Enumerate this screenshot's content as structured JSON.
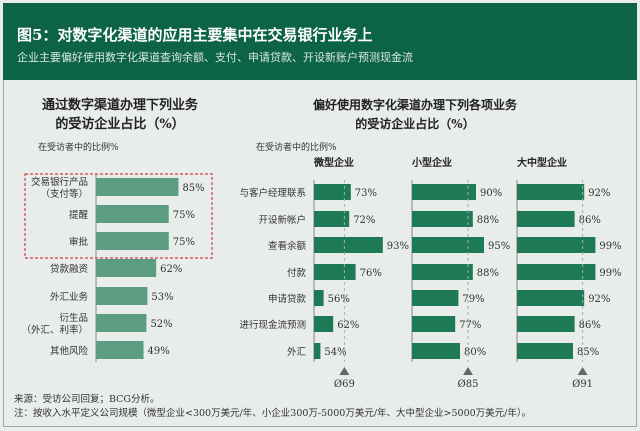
{
  "header": {
    "title": "图5：对数字化渠道的应用主要集中在交易银行业务上",
    "subtitle": "企业主要偏好使用数字化渠道查询余额、支付、申请贷款、开设新账户预测现金流"
  },
  "footer": {
    "source": "来源：受访公司回复；BCG分析。",
    "note": "注：按收入水平定义公司规模（微型企业<300万美元/年、小企业300万-5000万美元/年、大中型企业>5000万美元/年）。"
  },
  "colors": {
    "header": "#0c6444",
    "left_bar": "#5c9c80",
    "right_bar": "#1e7a54",
    "highlight": "#d0404a"
  },
  "chart_data": [
    {
      "type": "bar",
      "orientation": "horizontal",
      "title": "通过数字渠道办理下列业务的受访企业占比（%）",
      "title_lines": [
        "通过数字渠道办理下列业务",
        "的受访企业占比（%）"
      ],
      "axis_note": "在受访者中的比例%",
      "categories": [
        [
          "交易银行产品",
          "（支付等）"
        ],
        [
          "提醒"
        ],
        [
          "审批"
        ],
        [
          "贷款融资"
        ],
        [
          "外汇业务"
        ],
        [
          "衍生品",
          "（外汇、利率）"
        ],
        [
          "其他风险"
        ]
      ],
      "values": [
        85,
        75,
        75,
        62,
        53,
        52,
        49
      ],
      "labels": [
        "85%",
        "75%",
        "75%",
        "62%",
        "53%",
        "52%",
        "49%"
      ],
      "highlighted_categories": [
        0,
        1,
        2
      ],
      "xlim": [
        0,
        100
      ]
    },
    {
      "type": "bar",
      "orientation": "horizontal",
      "title": "偏好使用数字化渠道办理下列各项业务的受访企业占比（%）",
      "title_lines": [
        "偏好使用数字化渠道办理下列各项业务",
        "的受访企业占比（%）"
      ],
      "axis_note": "在受访者中的比例%",
      "categories": [
        "与客户经理联系",
        "开设新帐户",
        "查看余额",
        "付款",
        "申请贷款",
        "进行现金流预测",
        "外汇"
      ],
      "xlim": [
        50,
        100
      ],
      "series": [
        {
          "name": "微型企业",
          "values": [
            73,
            72,
            93,
            76,
            56,
            62,
            54
          ],
          "average": 69,
          "average_label": "Ø69"
        },
        {
          "name": "小型企业",
          "values": [
            90,
            88,
            95,
            88,
            79,
            77,
            80
          ],
          "average": 85,
          "average_label": "Ø85"
        },
        {
          "name": "大中型企业",
          "values": [
            92,
            86,
            99,
            99,
            92,
            86,
            85
          ],
          "average": 91,
          "average_label": "Ø91"
        }
      ]
    }
  ]
}
